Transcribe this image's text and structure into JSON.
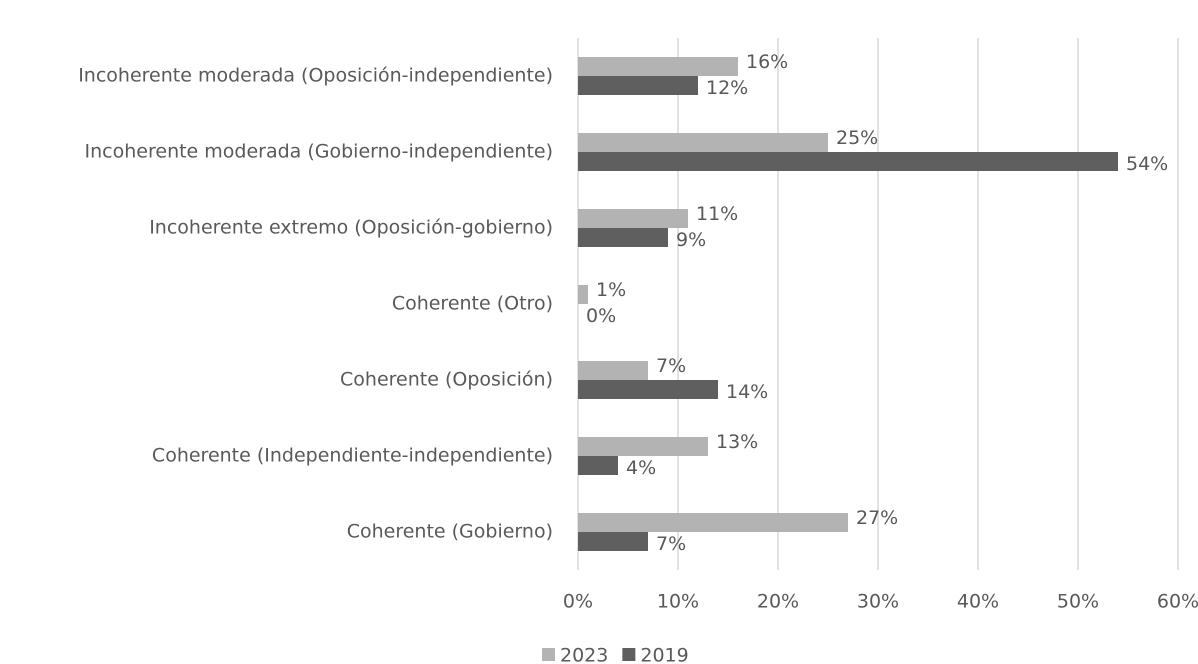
{
  "chart_data": {
    "type": "hbar",
    "categories": [
      "Incoherente moderada (Oposición-independiente)",
      "Incoherente moderada (Gobierno-independiente)",
      "Incoherente extremo (Oposición-gobierno)",
      "Coherente (Otro)",
      "Coherente (Oposición)",
      "Coherente (Independiente-independiente)",
      "Coherente (Gobierno)"
    ],
    "series": [
      {
        "name": "2023",
        "color": "#b3b3b3",
        "values": [
          16,
          25,
          11,
          1,
          7,
          13,
          27
        ],
        "value_labels": [
          "16%",
          "25%",
          "11%",
          "1%",
          "7%",
          "13%",
          "27%"
        ]
      },
      {
        "name": "2019",
        "color": "#5f5f5f",
        "values": [
          12,
          54,
          9,
          0,
          14,
          4,
          7
        ],
        "value_labels": [
          "12%",
          "54%",
          "9%",
          "0%",
          "14%",
          "4%",
          "7%"
        ]
      }
    ],
    "xlim": [
      0,
      60
    ],
    "xticks": [
      {
        "value": 0,
        "label": "0%"
      },
      {
        "value": 10,
        "label": "10%"
      },
      {
        "value": 20,
        "label": "20%"
      },
      {
        "value": 30,
        "label": "30%"
      },
      {
        "value": 40,
        "label": "40%"
      },
      {
        "value": 50,
        "label": "50%"
      },
      {
        "value": 60,
        "label": "60%"
      }
    ],
    "grid": true,
    "legend": "bottom"
  }
}
